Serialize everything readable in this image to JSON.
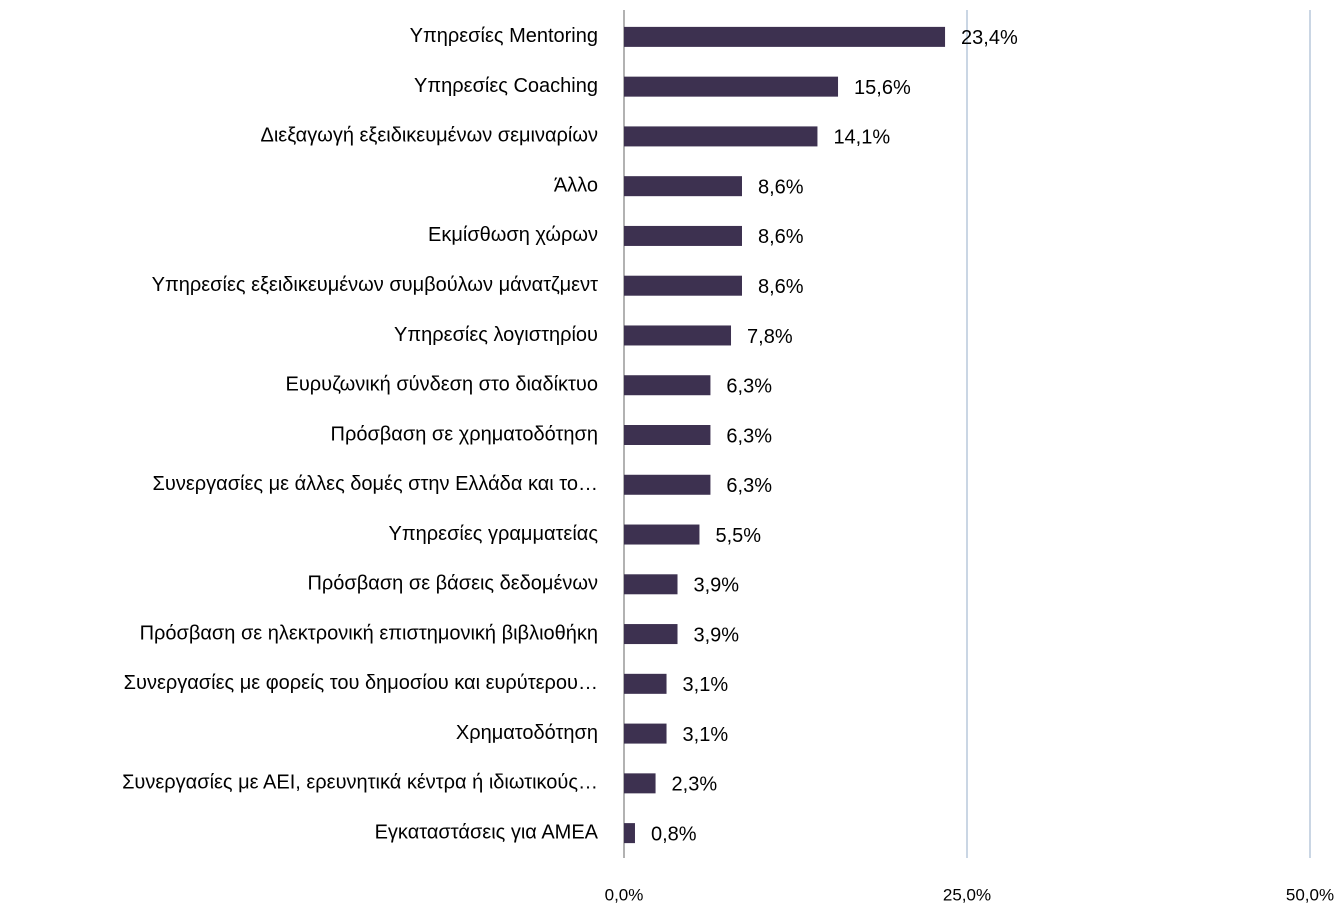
{
  "chart_data": {
    "type": "bar",
    "orientation": "horizontal",
    "categories": [
      "Υπηρεσίες Mentoring",
      "Υπηρεσίες Coaching",
      "Διεξαγωγή εξειδικευμένων  σεμιναρίων",
      "Άλλο",
      "Εκμίσθωση χώρων",
      "Υπηρεσίες εξειδικευμένων συμβούλων μάνατζμεντ",
      "Υπηρεσίες λογιστηρίου",
      "Ευρυζωνική σύνδεση στο διαδίκτυο",
      "Πρόσβαση σε χρηματοδότηση",
      "Συνεργασίες με άλλες δομές στην Ελλάδα και το…",
      "Υπηρεσίες γραμματείας",
      "Πρόσβαση σε βάσεις δεδομένων",
      "Πρόσβαση σε ηλεκτρονική επιστημονική βιβλιοθήκη",
      "Συνεργασίες με φορείς του δημοσίου και ευρύτερου…",
      "Χρηματοδότηση",
      "Συνεργασίες με ΑΕΙ, ερευνητικά κέντρα ή ιδιωτικούς…",
      "Εγκαταστάσεις για ΑΜΕΑ"
    ],
    "values": [
      23.4,
      15.6,
      14.1,
      8.6,
      8.6,
      8.6,
      7.8,
      6.3,
      6.3,
      6.3,
      5.5,
      3.9,
      3.9,
      3.1,
      3.1,
      2.3,
      0.8
    ],
    "value_labels": [
      "23,4%",
      "15,6%",
      "14,1%",
      "8,6%",
      "8,6%",
      "8,6%",
      "7,8%",
      "6,3%",
      "6,3%",
      "6,3%",
      "5,5%",
      "3,9%",
      "3,9%",
      "3,1%",
      "3,1%",
      "2,3%",
      "0,8%"
    ],
    "color": "#3d3150",
    "xlim": [
      0,
      50
    ],
    "xticks": [
      {
        "value": 0,
        "label": "0,0%"
      },
      {
        "value": 25,
        "label": "25,0%"
      },
      {
        "value": 50,
        "label": "50,0%"
      }
    ],
    "grid": true
  }
}
